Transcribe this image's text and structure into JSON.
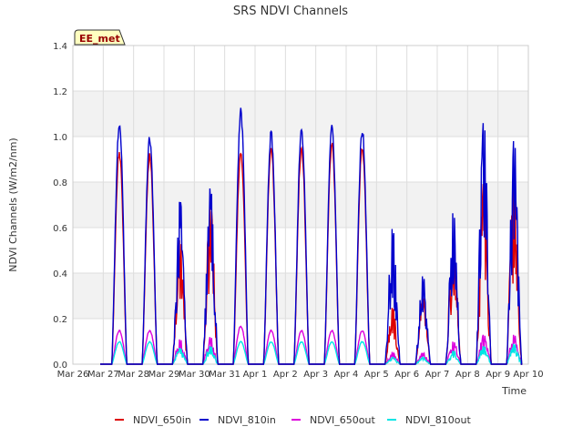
{
  "chart_data": {
    "type": "line",
    "title": "SRS NDVI Channels",
    "xlabel": "Time",
    "ylabel": "NDVI Channels (W/m2/nm)",
    "ylim": [
      0,
      1.4
    ],
    "yticks": [
      "0.0",
      "0.2",
      "0.4",
      "0.6",
      "0.8",
      "1.0",
      "1.2",
      "1.4"
    ],
    "xlim": [
      "2024-03-26",
      "2024-04-10"
    ],
    "xticks": [
      "Mar 26",
      "Mar 27",
      "Mar 28",
      "Mar 29",
      "Mar 30",
      "Mar 31",
      "Apr 1",
      "Apr 2",
      "Apr 3",
      "Apr 4",
      "Apr 5",
      "Apr 6",
      "Apr 7",
      "Apr 8",
      "Apr 9",
      "Apr 10"
    ],
    "badge": "EE_met",
    "grid": true,
    "background_bands": true,
    "legend_position": "bottom",
    "colors": {
      "NDVI_650in": "#dd0000",
      "NDVI_810in": "#0000cc",
      "NDVI_650out": "#dd00dd",
      "NDVI_810out": "#00e5e5"
    },
    "days": [
      "Mar 27",
      "Mar 28",
      "Mar 29",
      "Mar 30",
      "Mar 31",
      "Apr 1",
      "Apr 2",
      "Apr 3",
      "Apr 4",
      "Apr 5",
      "Apr 6",
      "Apr 7",
      "Apr 8",
      "Apr 9"
    ],
    "series": [
      {
        "name": "NDVI_650in",
        "daily_peak": [
          0.95,
          0.93,
          0.55,
          0.7,
          0.95,
          0.97,
          0.97,
          0.99,
          0.97,
          0.25,
          0.3,
          0.55,
          0.8,
          0.8
        ]
      },
      {
        "name": "NDVI_810in",
        "daily_peak": [
          1.08,
          1.01,
          0.72,
          0.78,
          1.13,
          1.03,
          1.05,
          1.06,
          1.05,
          0.6,
          0.39,
          0.67,
          1.07,
          0.99
        ]
      },
      {
        "name": "NDVI_650out",
        "daily_peak": [
          0.15,
          0.15,
          0.11,
          0.12,
          0.17,
          0.15,
          0.15,
          0.15,
          0.15,
          0.05,
          0.05,
          0.1,
          0.13,
          0.13
        ]
      },
      {
        "name": "NDVI_810out",
        "daily_peak": [
          0.1,
          0.1,
          0.07,
          0.08,
          0.1,
          0.1,
          0.1,
          0.1,
          0.1,
          0.03,
          0.03,
          0.06,
          0.08,
          0.09
        ]
      }
    ]
  }
}
